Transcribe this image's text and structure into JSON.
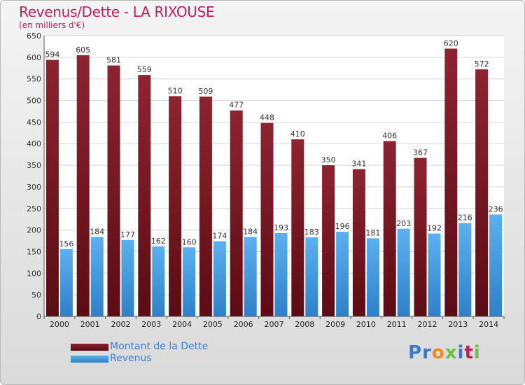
{
  "title": "Revenus/Dette - LA RIXOUSE",
  "subtitle": "(en milliers d'€)",
  "logo": {
    "text": "Proxiti",
    "colors": [
      "#3a78c8",
      "#3a78c8",
      "#f08a24",
      "#6dc044",
      "#3a78c8",
      "#c0205a",
      "#6dc044"
    ]
  },
  "colors": {
    "dette": "#7a1420",
    "revenus": "#4a9ee0",
    "title": "#c0205a",
    "legend_text": "#3c7dd8"
  },
  "chart_data": {
    "type": "bar",
    "categories": [
      "2000",
      "2001",
      "2002",
      "2003",
      "2004",
      "2005",
      "2006",
      "2007",
      "2008",
      "2009",
      "2010",
      "2011",
      "2012",
      "2013",
      "2014"
    ],
    "series": [
      {
        "name": "Montant de la Dette",
        "values": [
          594,
          605,
          581,
          559,
          510,
          509,
          477,
          448,
          410,
          350,
          341,
          406,
          367,
          620,
          572
        ]
      },
      {
        "name": "Revenus",
        "values": [
          156,
          184,
          177,
          162,
          160,
          174,
          184,
          193,
          183,
          196,
          181,
          203,
          192,
          216,
          236
        ]
      }
    ],
    "yticks": [
      0,
      50,
      100,
      150,
      200,
      250,
      300,
      350,
      400,
      450,
      500,
      550,
      600,
      650
    ],
    "ylim": [
      0,
      650
    ],
    "grid": true,
    "legend_position": "bottom-left"
  }
}
